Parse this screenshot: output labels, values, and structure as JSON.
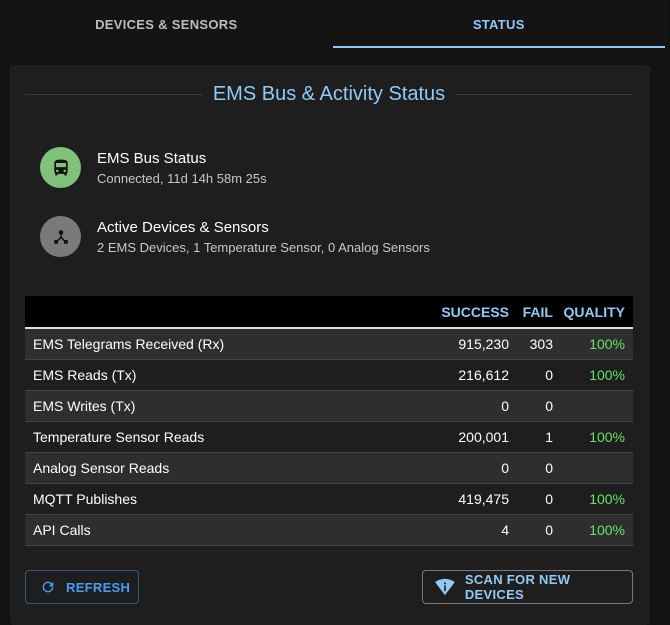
{
  "tabs": [
    {
      "label": "DEVICES & SENSORS",
      "active": false
    },
    {
      "label": "STATUS",
      "active": true
    }
  ],
  "card": {
    "title": "EMS Bus & Activity Status"
  },
  "status_items": [
    {
      "icon": "bus-icon",
      "color": "#80c27a",
      "primary": "EMS Bus Status",
      "secondary": "Connected, 11d 14h 58m 25s"
    },
    {
      "icon": "device-hub-icon",
      "color": "#7a7a7a",
      "primary": "Active Devices & Sensors",
      "secondary": "2 EMS Devices, 1 Temperature Sensor, 0 Analog Sensors"
    }
  ],
  "table": {
    "headers": [
      "",
      "SUCCESS",
      "FAIL",
      "QUALITY"
    ],
    "rows": [
      [
        "EMS Telegrams Received (Rx)",
        "915,230",
        "303",
        "100%"
      ],
      [
        "EMS Reads (Tx)",
        "216,612",
        "0",
        "100%"
      ],
      [
        "EMS Writes (Tx)",
        "0",
        "0",
        ""
      ],
      [
        "Temperature Sensor Reads",
        "200,001",
        "1",
        "100%"
      ],
      [
        "Analog Sensor Reads",
        "0",
        "0",
        ""
      ],
      [
        "MQTT Publishes",
        "419,475",
        "0",
        "100%"
      ],
      [
        "API Calls",
        "4",
        "0",
        "100%"
      ]
    ]
  },
  "buttons": {
    "refresh": "REFRESH",
    "scan": "SCAN FOR NEW DEVICES"
  },
  "colors": {
    "accent": "#90caf9",
    "quality_good": "#66e466"
  }
}
